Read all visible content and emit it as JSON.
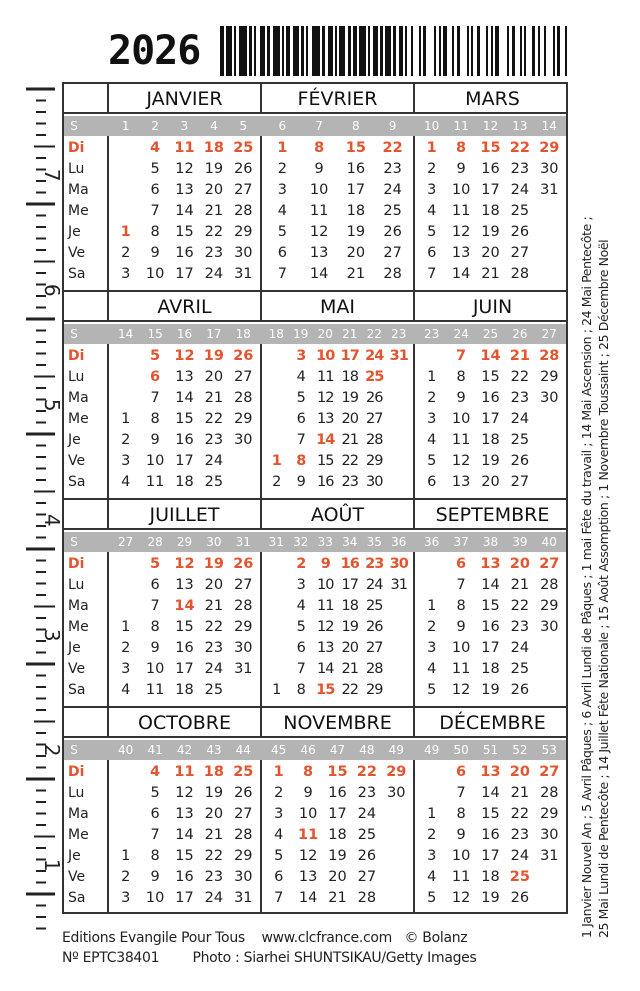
{
  "year": "2026",
  "day_labels": [
    "Di",
    "Lu",
    "Ma",
    "Me",
    "Je",
    "Ve",
    "Sa"
  ],
  "week_label": "S",
  "colors": {
    "sunday_holiday": "#e2552f",
    "week_bar": "#b4b4b4",
    "week_text": "#ffffff",
    "text": "#222222"
  },
  "months": [
    {
      "name": "JANVIER",
      "weeks": [
        "1",
        "2",
        "3",
        "4",
        "5"
      ],
      "cols": [
        [
          "",
          "",
          "",
          "",
          "1",
          "2",
          "3"
        ],
        [
          "4",
          "5",
          "6",
          "7",
          "8",
          "9",
          "10"
        ],
        [
          "11",
          "12",
          "13",
          "14",
          "15",
          "16",
          "17"
        ],
        [
          "18",
          "19",
          "20",
          "21",
          "22",
          "23",
          "24"
        ],
        [
          "25",
          "26",
          "27",
          "28",
          "29",
          "30",
          "31"
        ]
      ],
      "red": [
        "1"
      ]
    },
    {
      "name": "FÉVRIER",
      "weeks": [
        "6",
        "7",
        "8",
        "9"
      ],
      "cols": [
        [
          "1",
          "2",
          "3",
          "4",
          "5",
          "6",
          "7"
        ],
        [
          "8",
          "9",
          "10",
          "11",
          "12",
          "13",
          "14"
        ],
        [
          "15",
          "16",
          "17",
          "18",
          "19",
          "20",
          "21"
        ],
        [
          "22",
          "23",
          "24",
          "25",
          "26",
          "27",
          "28"
        ]
      ],
      "red": []
    },
    {
      "name": "MARS",
      "weeks": [
        "10",
        "11",
        "12",
        "13",
        "14"
      ],
      "cols": [
        [
          "1",
          "2",
          "3",
          "4",
          "5",
          "6",
          "7"
        ],
        [
          "8",
          "9",
          "10",
          "11",
          "12",
          "13",
          "14"
        ],
        [
          "15",
          "16",
          "17",
          "18",
          "19",
          "20",
          "21"
        ],
        [
          "22",
          "23",
          "24",
          "25",
          "26",
          "27",
          "28"
        ],
        [
          "29",
          "30",
          "31",
          "",
          "",
          "",
          ""
        ]
      ],
      "red": []
    },
    {
      "name": "AVRIL",
      "weeks": [
        "14",
        "15",
        "16",
        "17",
        "18"
      ],
      "cols": [
        [
          "",
          "",
          "",
          "1",
          "2",
          "3",
          "4"
        ],
        [
          "5",
          "6",
          "7",
          "8",
          "9",
          "10",
          "11"
        ],
        [
          "12",
          "13",
          "14",
          "15",
          "16",
          "17",
          "18"
        ],
        [
          "19",
          "20",
          "21",
          "22",
          "23",
          "24",
          "25"
        ],
        [
          "26",
          "27",
          "28",
          "29",
          "30",
          "",
          ""
        ]
      ],
      "red": [
        "6"
      ]
    },
    {
      "name": "MAI",
      "weeks": [
        "18",
        "19",
        "20",
        "21",
        "22",
        "23"
      ],
      "cols": [
        [
          "",
          "",
          "",
          "",
          "",
          "1",
          "2"
        ],
        [
          "3",
          "4",
          "5",
          "6",
          "7",
          "8",
          "9"
        ],
        [
          "10",
          "11",
          "12",
          "13",
          "14",
          "15",
          "16"
        ],
        [
          "17",
          "18",
          "19",
          "20",
          "21",
          "22",
          "23"
        ],
        [
          "24",
          "25",
          "26",
          "27",
          "28",
          "29",
          "30"
        ],
        [
          "31",
          "",
          "",
          "",
          "",
          "",
          ""
        ]
      ],
      "red": [
        "1",
        "8",
        "14",
        "25"
      ]
    },
    {
      "name": "JUIN",
      "weeks": [
        "23",
        "24",
        "25",
        "26",
        "27"
      ],
      "cols": [
        [
          "",
          "1",
          "2",
          "3",
          "4",
          "5",
          "6"
        ],
        [
          "7",
          "8",
          "9",
          "10",
          "11",
          "12",
          "13"
        ],
        [
          "14",
          "15",
          "16",
          "17",
          "18",
          "19",
          "20"
        ],
        [
          "21",
          "22",
          "23",
          "24",
          "25",
          "26",
          "27"
        ],
        [
          "28",
          "29",
          "30",
          "",
          "",
          "",
          ""
        ]
      ],
      "red": []
    },
    {
      "name": "JUILLET",
      "weeks": [
        "27",
        "28",
        "29",
        "30",
        "31"
      ],
      "cols": [
        [
          "",
          "",
          "",
          "1",
          "2",
          "3",
          "4"
        ],
        [
          "5",
          "6",
          "7",
          "8",
          "9",
          "10",
          "11"
        ],
        [
          "12",
          "13",
          "14",
          "15",
          "16",
          "17",
          "18"
        ],
        [
          "19",
          "20",
          "21",
          "22",
          "23",
          "24",
          "25"
        ],
        [
          "26",
          "27",
          "28",
          "29",
          "30",
          "31",
          ""
        ]
      ],
      "red": [
        "14"
      ]
    },
    {
      "name": "AOÛT",
      "weeks": [
        "31",
        "32",
        "33",
        "34",
        "35",
        "36"
      ],
      "cols": [
        [
          "",
          "",
          "",
          "",
          "",
          "",
          "1"
        ],
        [
          "2",
          "3",
          "4",
          "5",
          "6",
          "7",
          "8"
        ],
        [
          "9",
          "10",
          "11",
          "12",
          "13",
          "14",
          "15"
        ],
        [
          "16",
          "17",
          "18",
          "19",
          "20",
          "21",
          "22"
        ],
        [
          "23",
          "24",
          "25",
          "26",
          "27",
          "28",
          "29"
        ],
        [
          "30",
          "31",
          "",
          "",
          "",
          "",
          ""
        ]
      ],
      "red": [
        "15"
      ]
    },
    {
      "name": "SEPTEMBRE",
      "weeks": [
        "36",
        "37",
        "38",
        "39",
        "40"
      ],
      "cols": [
        [
          "",
          "",
          "1",
          "2",
          "3",
          "4",
          "5"
        ],
        [
          "6",
          "7",
          "8",
          "9",
          "10",
          "11",
          "12"
        ],
        [
          "13",
          "14",
          "15",
          "16",
          "17",
          "18",
          "19"
        ],
        [
          "20",
          "21",
          "22",
          "23",
          "24",
          "25",
          "26"
        ],
        [
          "27",
          "28",
          "29",
          "30",
          "",
          "",
          ""
        ]
      ],
      "red": []
    },
    {
      "name": "OCTOBRE",
      "weeks": [
        "40",
        "41",
        "42",
        "43",
        "44"
      ],
      "cols": [
        [
          "",
          "",
          "",
          "",
          "1",
          "2",
          "3"
        ],
        [
          "4",
          "5",
          "6",
          "7",
          "8",
          "9",
          "10"
        ],
        [
          "11",
          "12",
          "13",
          "14",
          "15",
          "16",
          "17"
        ],
        [
          "18",
          "19",
          "20",
          "21",
          "22",
          "23",
          "24"
        ],
        [
          "25",
          "26",
          "27",
          "28",
          "29",
          "30",
          "31"
        ]
      ],
      "red": []
    },
    {
      "name": "NOVEMBRE",
      "weeks": [
        "45",
        "46",
        "47",
        "48",
        "49"
      ],
      "cols": [
        [
          "1",
          "2",
          "3",
          "4",
          "5",
          "6",
          "7"
        ],
        [
          "8",
          "9",
          "10",
          "11",
          "12",
          "13",
          "14"
        ],
        [
          "15",
          "16",
          "17",
          "18",
          "19",
          "20",
          "21"
        ],
        [
          "22",
          "23",
          "24",
          "25",
          "26",
          "27",
          "28"
        ],
        [
          "29",
          "30",
          "",
          "",
          "",
          "",
          ""
        ]
      ],
      "red": [
        "11"
      ]
    },
    {
      "name": "DÉCEMBRE",
      "weeks": [
        "49",
        "50",
        "51",
        "52",
        "53"
      ],
      "cols": [
        [
          "",
          "",
          "1",
          "2",
          "3",
          "4",
          "5"
        ],
        [
          "6",
          "7",
          "8",
          "9",
          "10",
          "11",
          "12"
        ],
        [
          "13",
          "14",
          "15",
          "16",
          "17",
          "18",
          "19"
        ],
        [
          "20",
          "21",
          "22",
          "23",
          "24",
          "25",
          "26"
        ],
        [
          "27",
          "28",
          "29",
          "30",
          "31",
          "",
          ""
        ]
      ],
      "red": [
        "25"
      ]
    }
  ],
  "holidays_text": [
    "1 Janvier Nouvel An ; 5 Avril Pâques ; 6 Avril Lundi de Pâques ; 1 mai Fête du travail ; 14 Mai Ascension ; 24 Mai Pentecôte ;",
    "25 Mai Lundi de Pentecôte ; 14 Juillet Fête Nationale ; 15 Août Assomption ; 1 Novembre Toussaint ; 25 Décembre Noël"
  ],
  "ruler_numbers": [
    "7",
    "6",
    "5",
    "4",
    "3",
    "2",
    "1"
  ],
  "footer": {
    "line1": "Editions Evangile Pour Tous    www.clcfrance.com   © Bolanz",
    "line2": "Nº EPTC38401        Photo : Siarhei SHUNTSIKAU/Getty Images"
  }
}
